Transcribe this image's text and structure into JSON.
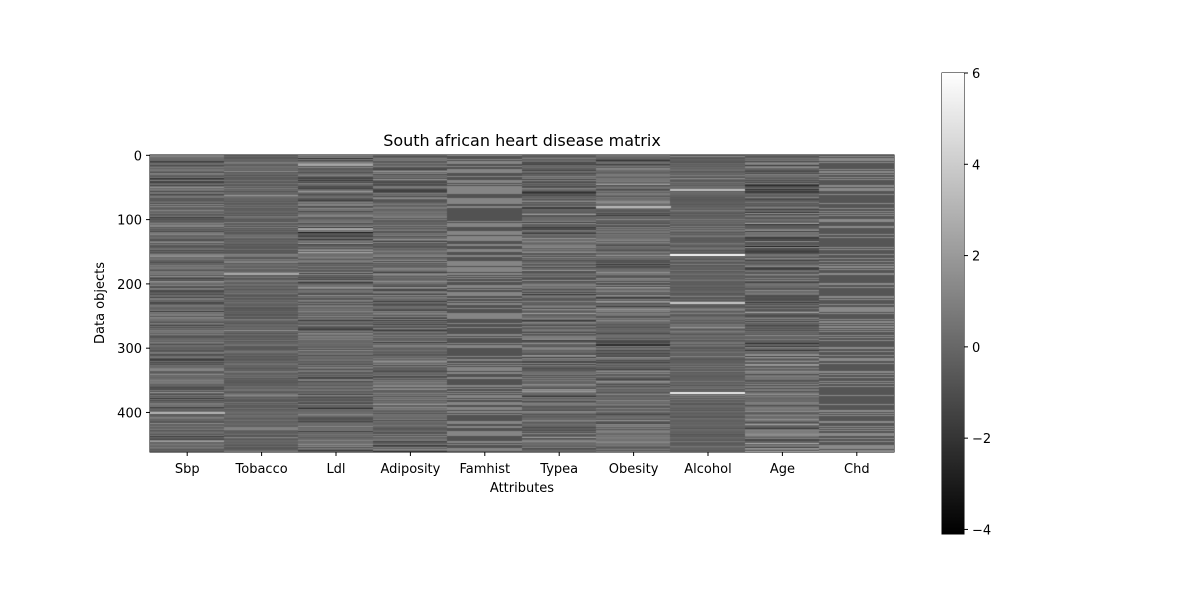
{
  "chart_data": {
    "type": "heatmap",
    "title": "South african heart disease matrix",
    "xlabel": "Attributes",
    "ylabel": "Data objects",
    "columns": [
      "Sbp",
      "Tobacco",
      "Ldl",
      "Adiposity",
      "Famhist",
      "Typea",
      "Obesity",
      "Alcohol",
      "Age",
      "Chd"
    ],
    "n_rows": 462,
    "ylim": [
      462,
      0
    ],
    "yticks": [
      "0",
      "100",
      "200",
      "300",
      "400"
    ],
    "colormap": "gray",
    "color_range": [
      -4.1,
      6
    ],
    "colorbar_ticks": [
      "6",
      "4",
      "2",
      "0",
      "−2",
      "−4"
    ],
    "notable_bright_stripes": [
      {
        "column": "Ldl",
        "row": 15,
        "value": 2.5
      },
      {
        "column": "Ldl",
        "row": 115,
        "value": 2.5
      },
      {
        "column": "Tobacco",
        "row": 185,
        "value": 2.6
      },
      {
        "column": "Alcohol",
        "row": 155,
        "value": 5.8
      },
      {
        "column": "Alcohol",
        "row": 370,
        "value": 5.2
      },
      {
        "column": "Alcohol",
        "row": 230,
        "value": 3.8
      },
      {
        "column": "Alcohol",
        "row": 53,
        "value": 3.5
      },
      {
        "column": "Obesity",
        "row": 80,
        "value": 3.2
      },
      {
        "column": "Sbp",
        "row": 400,
        "value": 3.0
      }
    ]
  }
}
